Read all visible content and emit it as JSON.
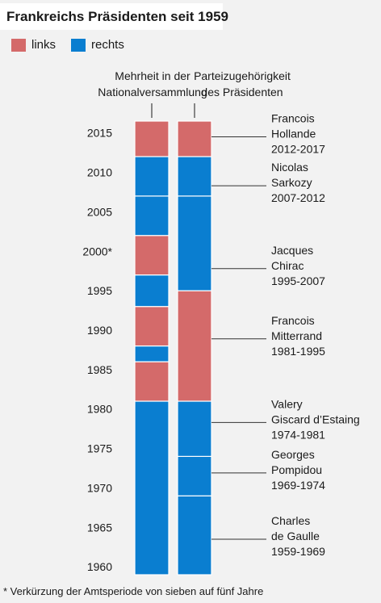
{
  "title": "Frankreichs Präsidenten seit 1959",
  "legend": [
    {
      "label": "links",
      "color": "#d46a6a"
    },
    {
      "label": "rechts",
      "color": "#0a7ed0"
    }
  ],
  "headers": {
    "assembly": [
      "Mehrheit in der",
      "Nationalversammlung"
    ],
    "president": [
      "Parteizugehörigkeit",
      "des Präsidenten"
    ]
  },
  "footnote": "* Verkürzung der Amtsperiode von sieben auf fünf Jahre",
  "chart_data": {
    "type": "bar",
    "orientation": "vertical-timeline",
    "y_range": [
      1959,
      2016.5
    ],
    "y_ticks": [
      {
        "label": "1960",
        "value": 1960
      },
      {
        "label": "1965",
        "value": 1965
      },
      {
        "label": "1970",
        "value": 1970
      },
      {
        "label": "1975",
        "value": 1975
      },
      {
        "label": "1980",
        "value": 1980
      },
      {
        "label": "1985",
        "value": 1985
      },
      {
        "label": "1990",
        "value": 1990
      },
      {
        "label": "1995",
        "value": 1995
      },
      {
        "label": "2000*",
        "value": 2000
      },
      {
        "label": "2005",
        "value": 2005
      },
      {
        "label": "2010",
        "value": 2010
      },
      {
        "label": "2015",
        "value": 2015
      }
    ],
    "series": [
      {
        "name": "Mehrheit in der Nationalversammlung",
        "segments": [
          {
            "from": 1959,
            "to": 1981,
            "party": "rechts"
          },
          {
            "from": 1981,
            "to": 1986,
            "party": "links"
          },
          {
            "from": 1986,
            "to": 1988,
            "party": "rechts"
          },
          {
            "from": 1988,
            "to": 1993,
            "party": "links"
          },
          {
            "from": 1993,
            "to": 1997,
            "party": "rechts"
          },
          {
            "from": 1997,
            "to": 2002,
            "party": "links"
          },
          {
            "from": 2002,
            "to": 2007,
            "party": "rechts"
          },
          {
            "from": 2007,
            "to": 2012,
            "party": "rechts"
          },
          {
            "from": 2012,
            "to": 2016.5,
            "party": "links"
          }
        ]
      },
      {
        "name": "Parteizugehörigkeit des Präsidenten",
        "segments": [
          {
            "from": 1959,
            "to": 1969,
            "party": "rechts"
          },
          {
            "from": 1969,
            "to": 1974,
            "party": "rechts"
          },
          {
            "from": 1974,
            "to": 1981,
            "party": "rechts"
          },
          {
            "from": 1981,
            "to": 1995,
            "party": "links"
          },
          {
            "from": 1995,
            "to": 2007,
            "party": "rechts"
          },
          {
            "from": 2007,
            "to": 2012,
            "party": "rechts"
          },
          {
            "from": 2012,
            "to": 2016.5,
            "party": "links"
          }
        ]
      }
    ],
    "annotations": [
      {
        "lines": [
          "Francois",
          "Hollande",
          "2012-2017"
        ],
        "year": 2014.5
      },
      {
        "lines": [
          "Nicolas",
          "Sarkozy",
          "2007-2012"
        ],
        "year": 2008.3
      },
      {
        "lines": [
          "Jacques",
          "Chirac",
          "1995-2007"
        ],
        "year": 1997.8
      },
      {
        "lines": [
          "Francois",
          "Mitterrand",
          "1981-1995"
        ],
        "year": 1988.9
      },
      {
        "lines": [
          "Valery",
          "Giscard d’Estaing",
          "1974-1981"
        ],
        "year": 1978.3
      },
      {
        "lines": [
          "Georges",
          "Pompidou",
          "1969-1974"
        ],
        "year": 1971.9
      },
      {
        "lines": [
          "Charles",
          "de Gaulle",
          "1959-1969"
        ],
        "year": 1963.5
      }
    ]
  }
}
